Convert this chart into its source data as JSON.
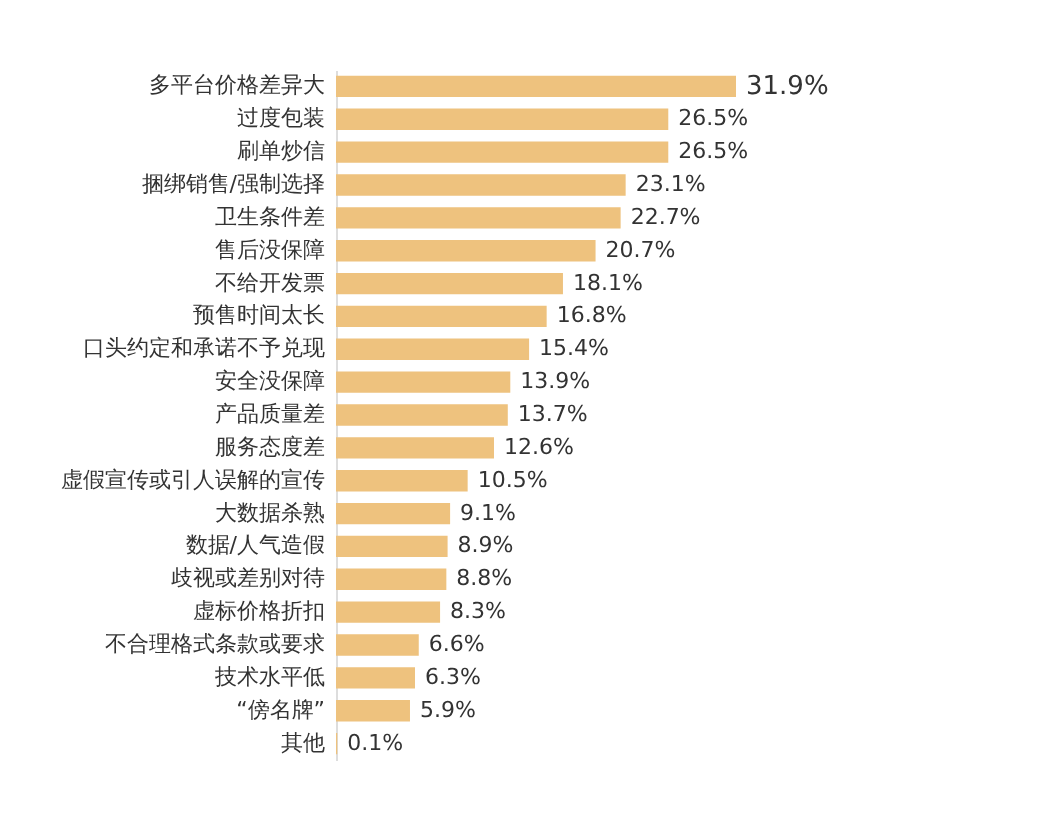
{
  "chart_data": {
    "type": "bar",
    "orientation": "horizontal",
    "categories": [
      "多平台价格差异大",
      "过度包装",
      "刷单炒信",
      "捆绑销售/强制选择",
      "卫生条件差",
      "售后没保障",
      "不给开发票",
      "预售时间太长",
      "口头约定和承诺不予兑现",
      "安全没保障",
      "产品质量差",
      "服务态度差",
      "虚假宣传或引人误解的宣传",
      "大数据杀熟",
      "数据/人气造假",
      "歧视或差别对待",
      "虚标价格折扣",
      "不合理格式条款或要求",
      "技术水平低",
      "“傍名牌”",
      "其他"
    ],
    "values": [
      31.9,
      26.5,
      26.5,
      23.1,
      22.7,
      20.7,
      18.1,
      16.8,
      15.4,
      13.9,
      13.7,
      12.6,
      10.5,
      9.1,
      8.9,
      8.8,
      8.3,
      6.6,
      6.3,
      5.9,
      0.1
    ],
    "value_labels": [
      "31.9%",
      "26.5%",
      "26.5%",
      "23.1%",
      "22.7%",
      "20.7%",
      "18.1%",
      "16.8%",
      "15.4%",
      "13.9%",
      "13.7%",
      "12.6%",
      "10.5%",
      "9.1%",
      "8.9%",
      "8.8%",
      "8.3%",
      "6.6%",
      "6.3%",
      "5.9%",
      "0.1%"
    ],
    "color": "#eec27e",
    "grid": false
  }
}
